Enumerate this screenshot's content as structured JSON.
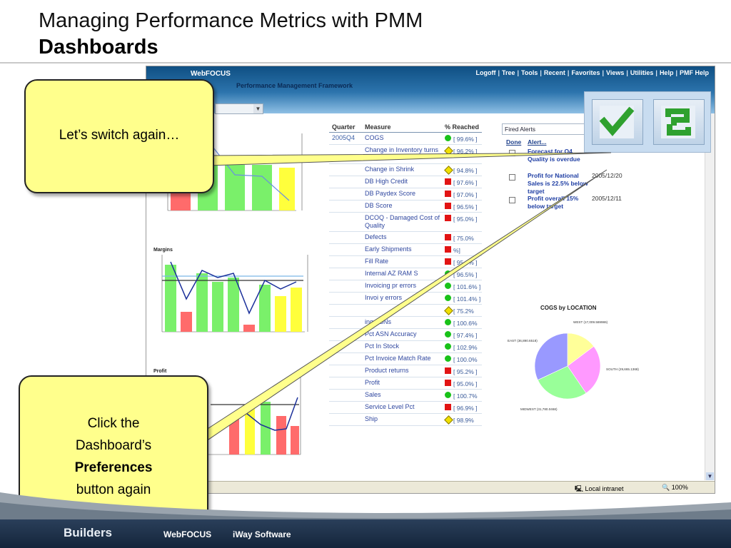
{
  "slide": {
    "title": "Managing Performance Metrics with PMM",
    "subtitle": "Dashboards"
  },
  "browser": {
    "app_name": "WebFOCUS",
    "nav_links": [
      "Logoff",
      "Tree",
      "Tools",
      "Recent",
      "Favorites",
      "Views",
      "Utilities",
      "Help",
      "PMF Help"
    ],
    "framework_title": "Performance Management Framework",
    "status_zone": "Local intranet",
    "status_zoom": "100%"
  },
  "charts": {
    "margins_title": "Margins",
    "profit_title": "Profit",
    "cogs_location": {
      "title": "COGS by LOCATION",
      "slices": [
        {
          "label": "WEST (17,009.569986)",
          "value": 17009.569986,
          "color": "#ffff99"
        },
        {
          "label": "SOUTH (29,665.1368)",
          "value": 29665.1368,
          "color": "#ff99ff"
        },
        {
          "label": "MIDWEST (31,780.0468)",
          "value": 31780.0468,
          "color": "#99ff99"
        },
        {
          "label": "EAST (36,890.6518)",
          "value": 36890.6518,
          "color": "#9999ff"
        }
      ]
    }
  },
  "metrics": {
    "headers": {
      "quarter": "Quarter",
      "measure": "Measure",
      "reached": "% Reached"
    },
    "quarter": "2005Q4",
    "rows": [
      {
        "measure": "COGS",
        "status": "green",
        "pct": "[ 99.6% ]"
      },
      {
        "measure": "Change in Inventory turns",
        "status": "yellow",
        "pct": "[ 96.2% ]"
      },
      {
        "measure": "Change in Shrink",
        "status": "yellow",
        "pct": "[ 94.8% ]"
      },
      {
        "measure": "DB High Credit",
        "status": "red",
        "pct": "[ 97.6% ]"
      },
      {
        "measure": "DB Paydex Score",
        "status": "red",
        "pct": "[ 97.0% ]"
      },
      {
        "measure": "DB Score",
        "status": "red",
        "pct": "[ 96.5% ]"
      },
      {
        "measure": "DCOQ - Damaged Cost of Quality",
        "status": "red",
        "pct": "[ 95.0% ]"
      },
      {
        "measure": "Defects",
        "status": "red",
        "pct": "[ 75.0%"
      },
      {
        "measure": "Early Shipments",
        "status": "red",
        "pct": "%]"
      },
      {
        "measure": "Fill Rate",
        "status": "red",
        "pct": "[ 95.0% ]"
      },
      {
        "measure": "Internal AZ RAM S",
        "status": "green",
        "pct": "[ 96.5% ]"
      },
      {
        "measure": "Invoicing pr errors",
        "status": "green",
        "pct": "[ 101.6% ]"
      },
      {
        "measure": "Invoi y errors",
        "status": "green",
        "pct": "[ 101.4% ]"
      },
      {
        "measure": "",
        "status": "yellow",
        "pct": "[ 75.2%"
      },
      {
        "measure": "ing ASNs",
        "status": "green",
        "pct": "[ 100.6%"
      },
      {
        "measure": "Pct ASN Accuracy",
        "status": "green",
        "pct": "[ 97.4% ]"
      },
      {
        "measure": "Pct In Stock",
        "status": "green",
        "pct": "[ 102.9%"
      },
      {
        "measure": "Pct Invoice Match Rate",
        "status": "green",
        "pct": "[ 100.0%"
      },
      {
        "measure": "Product returns",
        "status": "red",
        "pct": "[ 95.2% ]"
      },
      {
        "measure": "Profit",
        "status": "red",
        "pct": "[ 95.0% ]"
      },
      {
        "measure": "Sales",
        "status": "green",
        "pct": "[ 100.7%"
      },
      {
        "measure": "Service Level Pct",
        "status": "red",
        "pct": "[ 96.9% ]"
      },
      {
        "measure": "Ship",
        "status": "yellow",
        "pct": "[ 98.9%"
      }
    ]
  },
  "alerts": {
    "combo_value": "Fired Alerts",
    "col_done": "Done",
    "col_alert": "Alert...",
    "rows": [
      {
        "text": "Forecast for Q4 Quality is overdue",
        "date": ""
      },
      {
        "text": "Profit for National Sales is 22.5% below target",
        "date": "2005/12/20"
      },
      {
        "text": "Profit overall 15% below target",
        "date": "2005/12/11"
      }
    ]
  },
  "pref_buttons": [
    {
      "icon": "checkmark-icon",
      "color": "#2fa12f"
    },
    {
      "icon": "refresh-icon",
      "color": "#2fa12f"
    }
  ],
  "callouts": {
    "first": "Let’s switch again…",
    "second_line1": "Click the",
    "second_line2": "Dashboard’s",
    "second_bold": "Preferences",
    "second_line4": "button again"
  },
  "footer": {
    "builders": "Builders",
    "webfocus": "WebFOCUS",
    "iway": "iWay Software"
  }
}
